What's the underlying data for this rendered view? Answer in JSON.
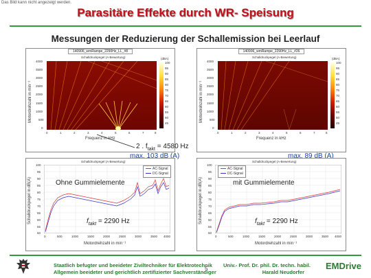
{
  "notice": "Das Bild kann nicht angezeigt werden.",
  "title": "Parasitäre Effekte durch WR- Speisung",
  "subtitle": "Messungen der Reduzierung der Schallemission bei Leerlauf",
  "colors": {
    "accent_red": "#c0101a",
    "accent_green": "#2f9a3a",
    "annotation_blue": "#1a3fa6"
  },
  "spectrograms": [
    {
      "title": "140906_wmRampe_2290Hz_LL_#8",
      "plot_label": "Schalldruckpegel (A-Bewertung)",
      "ylabel": "Motordrehzahl in min⁻¹",
      "xlabel": "Frequenz in kHz",
      "yticks": [
        "4000",
        "3500",
        "3000",
        "2500",
        "2000",
        "1500",
        "1000",
        "500",
        "0"
      ],
      "xticks": [
        "0",
        "1",
        "2",
        "3",
        "4",
        "5",
        "6",
        "7",
        "8"
      ],
      "colorbar_unit": "(dBA)",
      "colorbar_ticks": [
        "100",
        "95",
        "90",
        "85",
        "80",
        "75",
        "70",
        "65",
        "60",
        "55",
        "50",
        "45"
      ]
    },
    {
      "title": "140906_wmRampe_2290Hz_LL_#26",
      "plot_label": "Schalldruckpegel (A-Bewertung)",
      "ylabel": "Motordrehzahl in min⁻¹",
      "xlabel": "Frequenz in kHz",
      "yticks": [
        "4000",
        "3500",
        "3000",
        "2500",
        "2000",
        "1500",
        "1000",
        "500",
        "0"
      ],
      "xticks": [
        "0",
        "1",
        "2",
        "3",
        "4",
        "5",
        "6",
        "7",
        "8"
      ],
      "colorbar_unit": "(dBA)",
      "colorbar_ticks": [
        "100",
        "95",
        "90",
        "85",
        "80",
        "75",
        "70",
        "65",
        "60",
        "55",
        "50",
        "45"
      ]
    }
  ],
  "annotations": {
    "left_freq": "2 . f",
    "left_freq_sub": "takt",
    "left_freq_value": " = 4580 Hz",
    "left_max": "max. 103 dB (A)",
    "right_max": "max. 89 dB (A)"
  },
  "lineplots": [
    {
      "plot_label": "Schalldruckpegel (A-Bewertung)",
      "ylabel": "Schalldruckpegel in dB(A)",
      "xlabel": "Motordrehzahl in min⁻¹",
      "yticks": [
        "100",
        "95",
        "90",
        "85",
        "80",
        "75",
        "70",
        "65",
        "60",
        "55",
        "50"
      ],
      "xticks": [
        "0",
        "500",
        "1000",
        "1500",
        "2000",
        "2500",
        "3000",
        "3500",
        "4000"
      ],
      "legend": [
        "AC-Signal",
        "DC-Signal"
      ],
      "label": "Ohne Gummielemente",
      "ftakt_prefix": "f",
      "ftakt_sub": "takt",
      "ftakt_value": " = 2290 Hz"
    },
    {
      "plot_label": "Schalldruckpegel (A-Bewertung)",
      "ylabel": "Schalldruckpegel in dB(A)",
      "xlabel": "Motordrehzahl in min⁻¹",
      "yticks": [
        "100",
        "95",
        "90",
        "85",
        "80",
        "75",
        "70",
        "65",
        "60",
        "55",
        "50"
      ],
      "xticks": [
        "0",
        "500",
        "1000",
        "1500",
        "2000",
        "2500",
        "3000",
        "3500",
        "4000"
      ],
      "legend": [
        "AC-Signal",
        "DC-Signal"
      ],
      "label": "mit Gummielemente",
      "ftakt_prefix": "f",
      "ftakt_sub": "takt",
      "ftakt_value": " = 2290 Hz"
    }
  ],
  "footer": {
    "left_line1": "Staatlich befugter und beeideter Ziviltechniker für Elektrotechnik",
    "left_line2": "Allgemein beeideter und gerichtlich zertifizierter Sachverständiger",
    "page": "5",
    "right_line1": "Univ.- Prof. Dr. phil. Dr. techn. habil.",
    "right_line2": "Harald Neudorfer",
    "brand": "EMDrive"
  }
}
